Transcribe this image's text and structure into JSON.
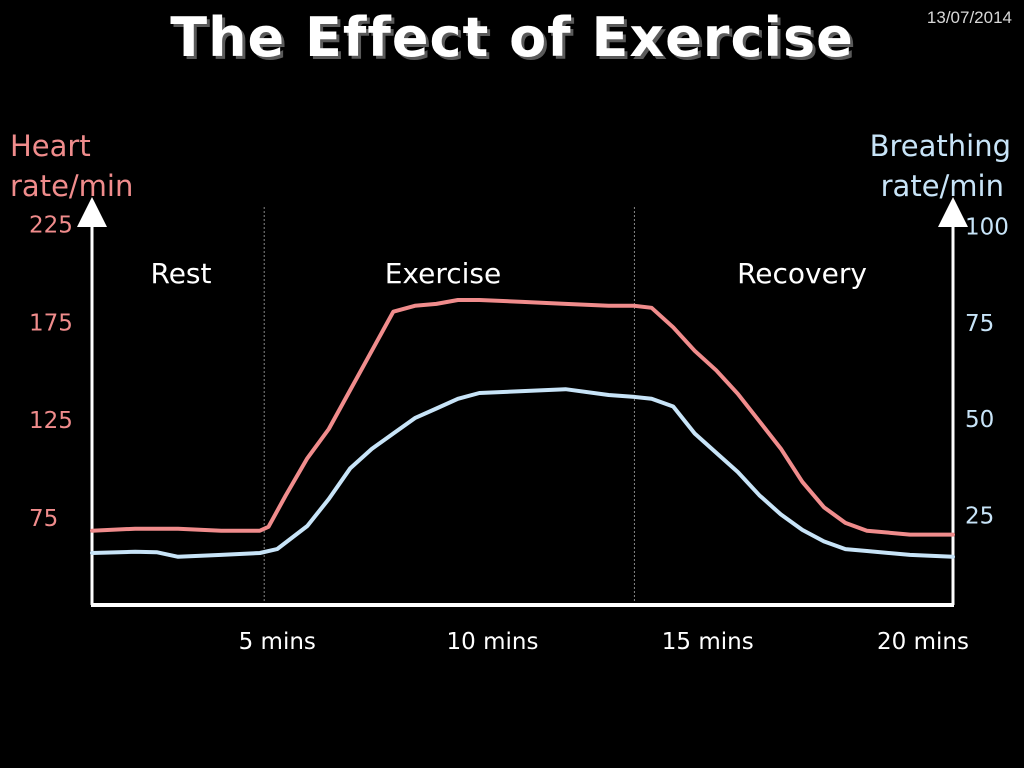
{
  "slide": {
    "title": "The Effect of Exercise",
    "date": "13/07/2014"
  },
  "colors": {
    "background": "#000000",
    "heart": "#f08c8c",
    "breathing": "#c8e4f8",
    "axis": "#ffffff",
    "divider": "#888888"
  },
  "chart_data": {
    "type": "line",
    "title": "The Effect of Exercise",
    "xlabel": "",
    "x_ticks": [
      {
        "value": 5,
        "label": "5 mins"
      },
      {
        "value": 10,
        "label": "10 mins"
      },
      {
        "value": 15,
        "label": "15 mins"
      },
      {
        "value": 20,
        "label": "20 mins"
      }
    ],
    "xlim": [
      0,
      20
    ],
    "y_left": {
      "label_lines": [
        "Heart",
        "rate/min"
      ],
      "ticks": [
        75,
        125,
        175,
        225
      ],
      "range": [
        30,
        232
      ]
    },
    "y_right": {
      "label_lines": [
        "Breathing",
        "rate/min"
      ],
      "ticks": [
        25,
        50,
        75,
        100
      ],
      "range": [
        1.5,
        104
      ]
    },
    "phases": [
      {
        "label": "Rest",
        "start": 0,
        "end": 4
      },
      {
        "label": "Exercise",
        "start": 4,
        "end": 12.6
      },
      {
        "label": "Recovery",
        "start": 12.6,
        "end": 20
      }
    ],
    "phase_dividers": [
      4,
      12.6
    ],
    "grid": false,
    "legend": "none",
    "series": [
      {
        "axis": "left",
        "points": [
          [
            0,
            68
          ],
          [
            1,
            69
          ],
          [
            2,
            69
          ],
          [
            3,
            68
          ],
          [
            3.9,
            68
          ],
          [
            4.1,
            70
          ],
          [
            4.5,
            86
          ],
          [
            5,
            105
          ],
          [
            5.5,
            120
          ],
          [
            6,
            140
          ],
          [
            6.5,
            160
          ],
          [
            7,
            180
          ],
          [
            7.5,
            183
          ],
          [
            8,
            184
          ],
          [
            8.5,
            186
          ],
          [
            9,
            186
          ],
          [
            10,
            185
          ],
          [
            11,
            184
          ],
          [
            12,
            183
          ],
          [
            12.6,
            183
          ],
          [
            13,
            182
          ],
          [
            13.5,
            172
          ],
          [
            14,
            160
          ],
          [
            14.5,
            150
          ],
          [
            15,
            138
          ],
          [
            15.5,
            124
          ],
          [
            16,
            110
          ],
          [
            16.5,
            93
          ],
          [
            17,
            80
          ],
          [
            17.5,
            72
          ],
          [
            18,
            68
          ],
          [
            19,
            66
          ],
          [
            20,
            66
          ]
        ]
      },
      {
        "axis": "right",
        "points": [
          [
            0,
            15
          ],
          [
            1,
            15.3
          ],
          [
            1.5,
            15.2
          ],
          [
            2,
            14
          ],
          [
            3,
            14.5
          ],
          [
            3.9,
            15
          ],
          [
            4.3,
            16
          ],
          [
            5,
            22
          ],
          [
            5.5,
            29
          ],
          [
            6,
            37
          ],
          [
            6.5,
            42
          ],
          [
            7,
            46
          ],
          [
            7.5,
            50
          ],
          [
            8,
            52.5
          ],
          [
            8.5,
            55
          ],
          [
            9,
            56.5
          ],
          [
            10,
            57
          ],
          [
            11,
            57.5
          ],
          [
            12,
            56
          ],
          [
            12.6,
            55.5
          ],
          [
            13,
            55
          ],
          [
            13.5,
            53
          ],
          [
            14,
            46
          ],
          [
            14.5,
            41
          ],
          [
            15,
            36
          ],
          [
            15.5,
            30
          ],
          [
            16,
            25
          ],
          [
            16.5,
            21
          ],
          [
            17,
            18
          ],
          [
            17.5,
            16
          ],
          [
            18,
            15.5
          ],
          [
            19,
            14.5
          ],
          [
            20,
            14
          ]
        ]
      }
    ]
  }
}
